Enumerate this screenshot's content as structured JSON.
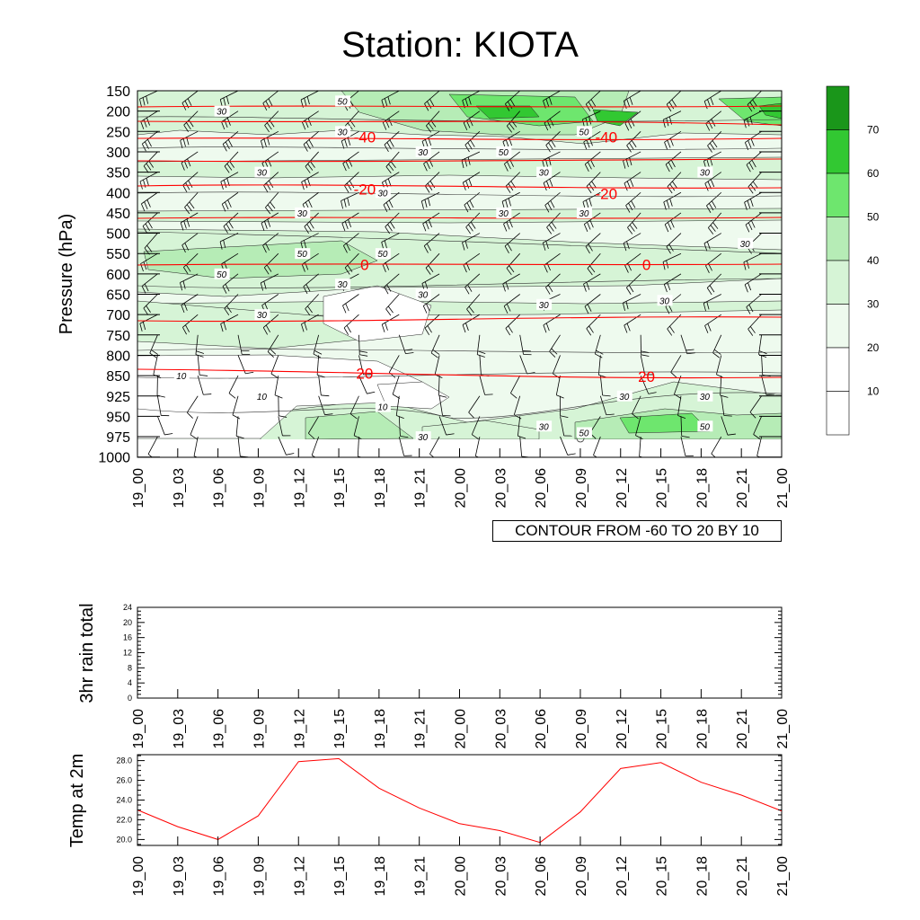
{
  "title": "Station: KIOTA",
  "contour_info": "CONTOUR FROM -60 TO 20 BY 10",
  "colors": {
    "temp_line": "#ff0000",
    "shade_levels": [
      "#ffffff",
      "#ffffff",
      "#eefaee",
      "#d6f4d6",
      "#b6ecb6",
      "#6ee66e",
      "#32c832",
      "#1a961a"
    ],
    "barb": "#000000"
  },
  "chart_data": [
    {
      "type": "heatmap",
      "title": "Station: KIOTA",
      "ylabel": "Pressure (hPa)",
      "xlabel": "",
      "x_ticks": [
        "19_00",
        "19_03",
        "19_06",
        "19_09",
        "19_12",
        "19_15",
        "19_18",
        "19_21",
        "20_00",
        "20_03",
        "20_06",
        "20_09",
        "20_12",
        "20_15",
        "20_18",
        "20_21",
        "21_00"
      ],
      "y_ticks": [
        "150",
        "200",
        "250",
        "300",
        "350",
        "400",
        "450",
        "500",
        "550",
        "600",
        "650",
        "700",
        "750",
        "800",
        "850",
        "925",
        "950",
        "975",
        "1000"
      ],
      "colorbar": {
        "levels": [
          10,
          20,
          30,
          40,
          50,
          60,
          70
        ]
      },
      "wind_speed_contours": [
        {
          "label": "30",
          "x": "19_06",
          "y": "200"
        },
        {
          "label": "50",
          "x": "19_15",
          "y": "175"
        },
        {
          "label": "30",
          "x": "19_15",
          "y": "250"
        },
        {
          "label": "30",
          "x": "19_21",
          "y": "300"
        },
        {
          "label": "50",
          "x": "20_03",
          "y": "300"
        },
        {
          "label": "50",
          "x": "20_09",
          "y": "250"
        },
        {
          "label": "30",
          "x": "19_09",
          "y": "350"
        },
        {
          "label": "30",
          "x": "20_06",
          "y": "350"
        },
        {
          "label": "30",
          "x": "20_18",
          "y": "350"
        },
        {
          "label": "30",
          "x": "19_18",
          "y": "400"
        },
        {
          "label": "30",
          "x": "19_12",
          "y": "450"
        },
        {
          "label": "30",
          "x": "20_03",
          "y": "450"
        },
        {
          "label": "30",
          "x": "20_09",
          "y": "450"
        },
        {
          "label": "50",
          "x": "19_12",
          "y": "550"
        },
        {
          "label": "50",
          "x": "19_06",
          "y": "600"
        },
        {
          "label": "50",
          "x": "19_18",
          "y": "550"
        },
        {
          "label": "30",
          "x": "20_21",
          "y": "525"
        },
        {
          "label": "30",
          "x": "19_15",
          "y": "625"
        },
        {
          "label": "30",
          "x": "19_21",
          "y": "650"
        },
        {
          "label": "30",
          "x": "20_06",
          "y": "675"
        },
        {
          "label": "30",
          "x": "20_15",
          "y": "665"
        },
        {
          "label": "30",
          "x": "19_09",
          "y": "700"
        },
        {
          "label": "10",
          "x": "19_03",
          "y": "850"
        },
        {
          "label": "10",
          "x": "19_09",
          "y": "925"
        },
        {
          "label": "10",
          "x": "19_18",
          "y": "938"
        },
        {
          "label": "30",
          "x": "19_21",
          "y": "975"
        },
        {
          "label": "30",
          "x": "20_06",
          "y": "962"
        },
        {
          "label": "50",
          "x": "20_09",
          "y": "970"
        },
        {
          "label": "30",
          "x": "20_12",
          "y": "925"
        },
        {
          "label": "30",
          "x": "20_18",
          "y": "925"
        },
        {
          "label": "50",
          "x": "20_18",
          "y": "962"
        }
      ],
      "temperature_contours": [
        {
          "label": "-40",
          "x": "19_18",
          "y": "262"
        },
        {
          "label": "-40",
          "x": "20_12",
          "y": "262"
        },
        {
          "label": "-20",
          "x": "19_18",
          "y": "390"
        },
        {
          "label": "-20",
          "x": "20_12",
          "y": "400"
        },
        {
          "label": "0",
          "x": "19_18",
          "y": "575"
        },
        {
          "label": "0",
          "x": "20_15",
          "y": "575"
        },
        {
          "label": "20",
          "x": "19_18",
          "y": "842"
        },
        {
          "label": "20",
          "x": "20_15",
          "y": "850"
        }
      ]
    },
    {
      "type": "bar",
      "ylabel": "3hr rain total",
      "xlabel": "",
      "categories": [
        "19_00",
        "19_03",
        "19_06",
        "19_09",
        "19_12",
        "19_15",
        "19_18",
        "19_21",
        "20_00",
        "20_03",
        "20_06",
        "20_09",
        "20_12",
        "20_15",
        "20_18",
        "20_21",
        "21_00"
      ],
      "values": [
        0,
        0,
        0,
        0,
        0,
        0,
        0,
        0,
        0,
        0,
        0,
        0,
        0,
        0,
        0,
        0,
        0
      ],
      "ylim": [
        0,
        24
      ],
      "y_ticks": [
        "0",
        "4",
        "8",
        "12",
        "16",
        "20",
        "24"
      ]
    },
    {
      "type": "line",
      "ylabel": "Temp at 2m",
      "xlabel": "",
      "categories": [
        "19_00",
        "19_03",
        "19_06",
        "19_09",
        "19_12",
        "19_15",
        "19_18",
        "19_21",
        "20_00",
        "20_03",
        "20_06",
        "20_09",
        "20_12",
        "20_15",
        "20_18",
        "20_21",
        "21_00"
      ],
      "values": [
        23.0,
        21.3,
        20.0,
        22.4,
        27.9,
        28.2,
        25.2,
        23.2,
        21.6,
        20.9,
        19.7,
        22.8,
        27.2,
        27.8,
        25.8,
        24.5,
        22.9
      ],
      "ylim": [
        19.4,
        28.6
      ],
      "y_ticks": [
        "20.0",
        "22.0",
        "24.0",
        "26.0",
        "28.0"
      ]
    }
  ]
}
